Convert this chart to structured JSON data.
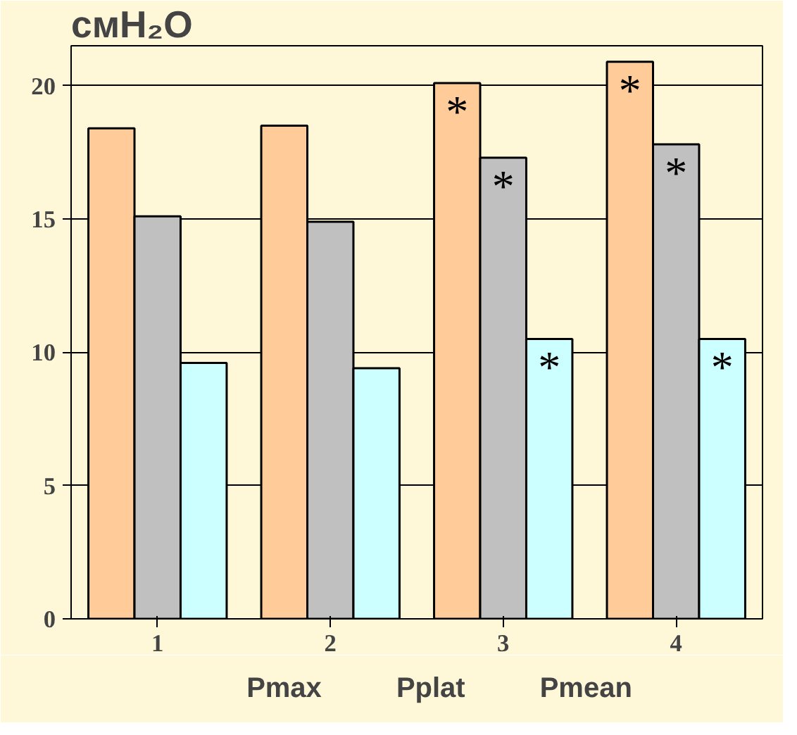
{
  "chart_data": {
    "type": "bar",
    "ylabel": "смH₂O",
    "categories": [
      "1",
      "2",
      "3",
      "4"
    ],
    "series": [
      {
        "name": "Pmax",
        "color": "#ffcc99",
        "values": [
          18.4,
          18.5,
          20.1,
          20.9
        ],
        "value_labels": [
          null,
          null,
          "*",
          "*"
        ]
      },
      {
        "name": "Pplat",
        "color": "#c0c0c0",
        "values": [
          15.1,
          14.9,
          17.3,
          17.8
        ],
        "value_labels": [
          null,
          null,
          "*",
          "*"
        ]
      },
      {
        "name": "Pmean",
        "color": "#ccffff",
        "values": [
          9.6,
          9.4,
          10.5,
          10.5
        ],
        "value_labels": [
          null,
          null,
          "*",
          "*"
        ]
      }
    ],
    "ylim": [
      0,
      21.5
    ],
    "yticks": [
      0,
      5,
      10,
      15,
      20
    ],
    "grid": "y",
    "legend": "bottom"
  }
}
